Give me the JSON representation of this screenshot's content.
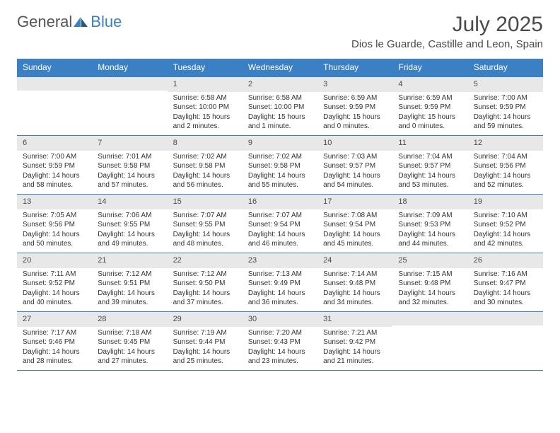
{
  "logo": {
    "general": "General",
    "blue": "Blue"
  },
  "title": "July 2025",
  "location": "Dios le Guarde, Castille and Leon, Spain",
  "colors": {
    "header_bg": "#3b7fc4",
    "header_text": "#ffffff",
    "day_number_bg": "#e8e8e8",
    "text": "#333333",
    "title_text": "#4a4a4a",
    "page_bg": "#ffffff"
  },
  "dayHeaders": [
    "Sunday",
    "Monday",
    "Tuesday",
    "Wednesday",
    "Thursday",
    "Friday",
    "Saturday"
  ],
  "weeks": [
    [
      {
        "num": "",
        "sunrise": "",
        "sunset": "",
        "daylight": ""
      },
      {
        "num": "",
        "sunrise": "",
        "sunset": "",
        "daylight": ""
      },
      {
        "num": "1",
        "sunrise": "Sunrise: 6:58 AM",
        "sunset": "Sunset: 10:00 PM",
        "daylight": "Daylight: 15 hours and 2 minutes."
      },
      {
        "num": "2",
        "sunrise": "Sunrise: 6:58 AM",
        "sunset": "Sunset: 10:00 PM",
        "daylight": "Daylight: 15 hours and 1 minute."
      },
      {
        "num": "3",
        "sunrise": "Sunrise: 6:59 AM",
        "sunset": "Sunset: 9:59 PM",
        "daylight": "Daylight: 15 hours and 0 minutes."
      },
      {
        "num": "4",
        "sunrise": "Sunrise: 6:59 AM",
        "sunset": "Sunset: 9:59 PM",
        "daylight": "Daylight: 15 hours and 0 minutes."
      },
      {
        "num": "5",
        "sunrise": "Sunrise: 7:00 AM",
        "sunset": "Sunset: 9:59 PM",
        "daylight": "Daylight: 14 hours and 59 minutes."
      }
    ],
    [
      {
        "num": "6",
        "sunrise": "Sunrise: 7:00 AM",
        "sunset": "Sunset: 9:59 PM",
        "daylight": "Daylight: 14 hours and 58 minutes."
      },
      {
        "num": "7",
        "sunrise": "Sunrise: 7:01 AM",
        "sunset": "Sunset: 9:58 PM",
        "daylight": "Daylight: 14 hours and 57 minutes."
      },
      {
        "num": "8",
        "sunrise": "Sunrise: 7:02 AM",
        "sunset": "Sunset: 9:58 PM",
        "daylight": "Daylight: 14 hours and 56 minutes."
      },
      {
        "num": "9",
        "sunrise": "Sunrise: 7:02 AM",
        "sunset": "Sunset: 9:58 PM",
        "daylight": "Daylight: 14 hours and 55 minutes."
      },
      {
        "num": "10",
        "sunrise": "Sunrise: 7:03 AM",
        "sunset": "Sunset: 9:57 PM",
        "daylight": "Daylight: 14 hours and 54 minutes."
      },
      {
        "num": "11",
        "sunrise": "Sunrise: 7:04 AM",
        "sunset": "Sunset: 9:57 PM",
        "daylight": "Daylight: 14 hours and 53 minutes."
      },
      {
        "num": "12",
        "sunrise": "Sunrise: 7:04 AM",
        "sunset": "Sunset: 9:56 PM",
        "daylight": "Daylight: 14 hours and 52 minutes."
      }
    ],
    [
      {
        "num": "13",
        "sunrise": "Sunrise: 7:05 AM",
        "sunset": "Sunset: 9:56 PM",
        "daylight": "Daylight: 14 hours and 50 minutes."
      },
      {
        "num": "14",
        "sunrise": "Sunrise: 7:06 AM",
        "sunset": "Sunset: 9:55 PM",
        "daylight": "Daylight: 14 hours and 49 minutes."
      },
      {
        "num": "15",
        "sunrise": "Sunrise: 7:07 AM",
        "sunset": "Sunset: 9:55 PM",
        "daylight": "Daylight: 14 hours and 48 minutes."
      },
      {
        "num": "16",
        "sunrise": "Sunrise: 7:07 AM",
        "sunset": "Sunset: 9:54 PM",
        "daylight": "Daylight: 14 hours and 46 minutes."
      },
      {
        "num": "17",
        "sunrise": "Sunrise: 7:08 AM",
        "sunset": "Sunset: 9:54 PM",
        "daylight": "Daylight: 14 hours and 45 minutes."
      },
      {
        "num": "18",
        "sunrise": "Sunrise: 7:09 AM",
        "sunset": "Sunset: 9:53 PM",
        "daylight": "Daylight: 14 hours and 44 minutes."
      },
      {
        "num": "19",
        "sunrise": "Sunrise: 7:10 AM",
        "sunset": "Sunset: 9:52 PM",
        "daylight": "Daylight: 14 hours and 42 minutes."
      }
    ],
    [
      {
        "num": "20",
        "sunrise": "Sunrise: 7:11 AM",
        "sunset": "Sunset: 9:52 PM",
        "daylight": "Daylight: 14 hours and 40 minutes."
      },
      {
        "num": "21",
        "sunrise": "Sunrise: 7:12 AM",
        "sunset": "Sunset: 9:51 PM",
        "daylight": "Daylight: 14 hours and 39 minutes."
      },
      {
        "num": "22",
        "sunrise": "Sunrise: 7:12 AM",
        "sunset": "Sunset: 9:50 PM",
        "daylight": "Daylight: 14 hours and 37 minutes."
      },
      {
        "num": "23",
        "sunrise": "Sunrise: 7:13 AM",
        "sunset": "Sunset: 9:49 PM",
        "daylight": "Daylight: 14 hours and 36 minutes."
      },
      {
        "num": "24",
        "sunrise": "Sunrise: 7:14 AM",
        "sunset": "Sunset: 9:48 PM",
        "daylight": "Daylight: 14 hours and 34 minutes."
      },
      {
        "num": "25",
        "sunrise": "Sunrise: 7:15 AM",
        "sunset": "Sunset: 9:48 PM",
        "daylight": "Daylight: 14 hours and 32 minutes."
      },
      {
        "num": "26",
        "sunrise": "Sunrise: 7:16 AM",
        "sunset": "Sunset: 9:47 PM",
        "daylight": "Daylight: 14 hours and 30 minutes."
      }
    ],
    [
      {
        "num": "27",
        "sunrise": "Sunrise: 7:17 AM",
        "sunset": "Sunset: 9:46 PM",
        "daylight": "Daylight: 14 hours and 28 minutes."
      },
      {
        "num": "28",
        "sunrise": "Sunrise: 7:18 AM",
        "sunset": "Sunset: 9:45 PM",
        "daylight": "Daylight: 14 hours and 27 minutes."
      },
      {
        "num": "29",
        "sunrise": "Sunrise: 7:19 AM",
        "sunset": "Sunset: 9:44 PM",
        "daylight": "Daylight: 14 hours and 25 minutes."
      },
      {
        "num": "30",
        "sunrise": "Sunrise: 7:20 AM",
        "sunset": "Sunset: 9:43 PM",
        "daylight": "Daylight: 14 hours and 23 minutes."
      },
      {
        "num": "31",
        "sunrise": "Sunrise: 7:21 AM",
        "sunset": "Sunset: 9:42 PM",
        "daylight": "Daylight: 14 hours and 21 minutes."
      },
      {
        "num": "",
        "sunrise": "",
        "sunset": "",
        "daylight": ""
      },
      {
        "num": "",
        "sunrise": "",
        "sunset": "",
        "daylight": ""
      }
    ]
  ]
}
